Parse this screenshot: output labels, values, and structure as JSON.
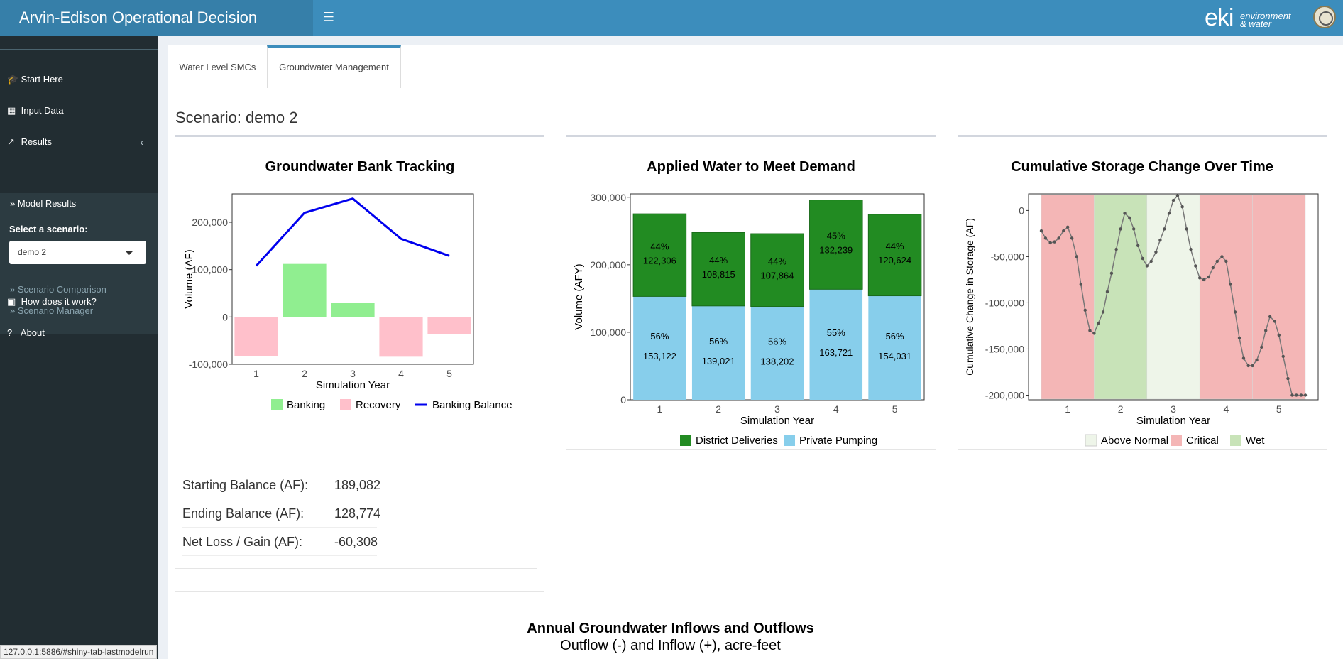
{
  "app": {
    "title": "Arvin-Edison Operational Decision Support",
    "logo_big": "eki",
    "logo_small_1": "environment",
    "logo_small_2": "& water"
  },
  "sidebar": {
    "items": [
      {
        "label": "Start Here",
        "icon": "graduation-cap-icon"
      },
      {
        "label": "Input Data",
        "icon": "table-icon"
      },
      {
        "label": "Results",
        "icon": "line-chart-icon"
      },
      {
        "label": "How does it work?",
        "icon": "book-icon"
      },
      {
        "label": "About",
        "icon": "question-icon"
      }
    ],
    "sub_items": [
      {
        "label": "Model Results",
        "active": true
      },
      {
        "label": "Scenario Comparison",
        "active": false
      },
      {
        "label": "Scenario Manager",
        "active": false
      }
    ],
    "select_label": "Select a scenario:",
    "select_value": "demo 2"
  },
  "tabs": [
    {
      "label": "Water Level SMCs",
      "active": false
    },
    {
      "label": "Groundwater Management",
      "active": true
    }
  ],
  "scenario_title": "Scenario: demo 2",
  "balances": [
    {
      "label": "Starting Balance (AF):",
      "value": "189,082"
    },
    {
      "label": "Ending Balance (AF):",
      "value": "128,774"
    },
    {
      "label": "Net Loss / Gain (AF):",
      "value": "-60,308"
    }
  ],
  "bottom": {
    "title": "Annual Groundwater Inflows and Outflows",
    "subtitle": "Outflow (-) and Inflow (+), acre-feet"
  },
  "status_url": "127.0.0.1:5886/#shiny-tab-lastmodelrun",
  "colors": {
    "header": "#3c8dbc",
    "banking": "#90ee90",
    "recovery": "#ffc0cb",
    "balance": "#0000ee",
    "district": "#228b22",
    "private": "#87ceeb",
    "critical": "#f4b6b6",
    "wet": "#c8e3b8",
    "above_normal": "#eef5e9"
  },
  "chart_data": [
    {
      "type": "bar",
      "title": "Groundwater Bank Tracking",
      "xlabel": "Simulation Year",
      "ylabel": "Volume (AF)",
      "categories": [
        "1",
        "2",
        "3",
        "4",
        "5"
      ],
      "y_ticks": [
        "-100,000",
        "0",
        "100,000",
        "200,000"
      ],
      "ylim": [
        -100000,
        260000
      ],
      "series": [
        {
          "name": "Banking",
          "values": [
            0,
            112000,
            30000,
            0,
            0
          ]
        },
        {
          "name": "Recovery",
          "values": [
            -82000,
            0,
            0,
            -84000,
            -36000
          ]
        },
        {
          "name": "Banking Balance",
          "type": "line",
          "values": [
            108000,
            220000,
            250000,
            165000,
            129000
          ]
        }
      ],
      "legend": "bottom"
    },
    {
      "type": "bar",
      "title": "Applied Water to Meet Demand",
      "xlabel": "Simulation Year",
      "ylabel": "Volume (AFY)",
      "categories": [
        "1",
        "2",
        "3",
        "4",
        "5"
      ],
      "y_ticks": [
        "0",
        "100,000",
        "200,000",
        "300,000"
      ],
      "ylim": [
        0,
        305000
      ],
      "stacked": true,
      "series": [
        {
          "name": "Private Pumping",
          "values": [
            153122,
            139021,
            138202,
            163721,
            154031
          ],
          "labels": [
            "153,122",
            "139,021",
            "138,202",
            "163,721",
            "154,031"
          ],
          "pct": [
            "56%",
            "56%",
            "56%",
            "55%",
            "56%"
          ]
        },
        {
          "name": "District Deliveries",
          "values": [
            122306,
            108815,
            107864,
            132239,
            120624
          ],
          "labels": [
            "122,306",
            "108,815",
            "107,864",
            "132,239",
            "120,624"
          ],
          "pct": [
            "44%",
            "44%",
            "44%",
            "45%",
            "44%"
          ]
        }
      ],
      "legend": "bottom"
    },
    {
      "type": "line",
      "title": "Cumulative Storage Change Over Time",
      "xlabel": "Simulation Year",
      "ylabel": "Cumulative Change in Storage (AF)",
      "x_ticks": [
        "1",
        "2",
        "3",
        "4",
        "5"
      ],
      "y_ticks": [
        "0",
        "-50,000",
        "-100,000",
        "-150,000",
        "-200,000"
      ],
      "xlim": [
        0.5,
        5.5
      ],
      "ylim": [
        -205000,
        18000
      ],
      "bands": [
        {
          "from": 0.5,
          "to": 1.5,
          "type": "Critical"
        },
        {
          "from": 1.5,
          "to": 2.5,
          "type": "Wet"
        },
        {
          "from": 2.5,
          "to": 3.5,
          "type": "Above Normal"
        },
        {
          "from": 3.5,
          "to": 4.5,
          "type": "Critical"
        },
        {
          "from": 4.5,
          "to": 5.5,
          "type": "Critical"
        }
      ],
      "legend_entries": [
        "Above Normal",
        "Critical",
        "Wet"
      ],
      "x": [
        0.5,
        0.58,
        0.67,
        0.75,
        0.83,
        0.92,
        1.0,
        1.08,
        1.17,
        1.25,
        1.33,
        1.42,
        1.5,
        1.58,
        1.67,
        1.75,
        1.83,
        1.92,
        2.0,
        2.08,
        2.17,
        2.25,
        2.33,
        2.42,
        2.5,
        2.58,
        2.67,
        2.75,
        2.83,
        2.92,
        3.0,
        3.08,
        3.17,
        3.25,
        3.33,
        3.42,
        3.5,
        3.58,
        3.67,
        3.75,
        3.83,
        3.92,
        4.0,
        4.08,
        4.17,
        4.25,
        4.33,
        4.42,
        4.5,
        4.58,
        4.67,
        4.75,
        4.83,
        4.92,
        5.0,
        5.08,
        5.17,
        5.25,
        5.33,
        5.42,
        5.5
      ],
      "y": [
        -22000,
        -30000,
        -35000,
        -34000,
        -30000,
        -22000,
        -18000,
        -30000,
        -50000,
        -80000,
        -108000,
        -130000,
        -133000,
        -122000,
        -110000,
        -88000,
        -68000,
        -42000,
        -20000,
        -3000,
        -8000,
        -20000,
        -38000,
        -52000,
        -60000,
        -55000,
        -45000,
        -32000,
        -20000,
        -3000,
        11000,
        16000,
        4000,
        -20000,
        -42000,
        -60000,
        -73000,
        -75000,
        -72000,
        -62000,
        -55000,
        -50000,
        -55000,
        -80000,
        -110000,
        -138000,
        -160000,
        -168000,
        -168000,
        -162000,
        -148000,
        -130000,
        -115000,
        -120000,
        -135000,
        -158000,
        -182000,
        -200000,
        -200000,
        -200000,
        -200000
      ]
    }
  ]
}
